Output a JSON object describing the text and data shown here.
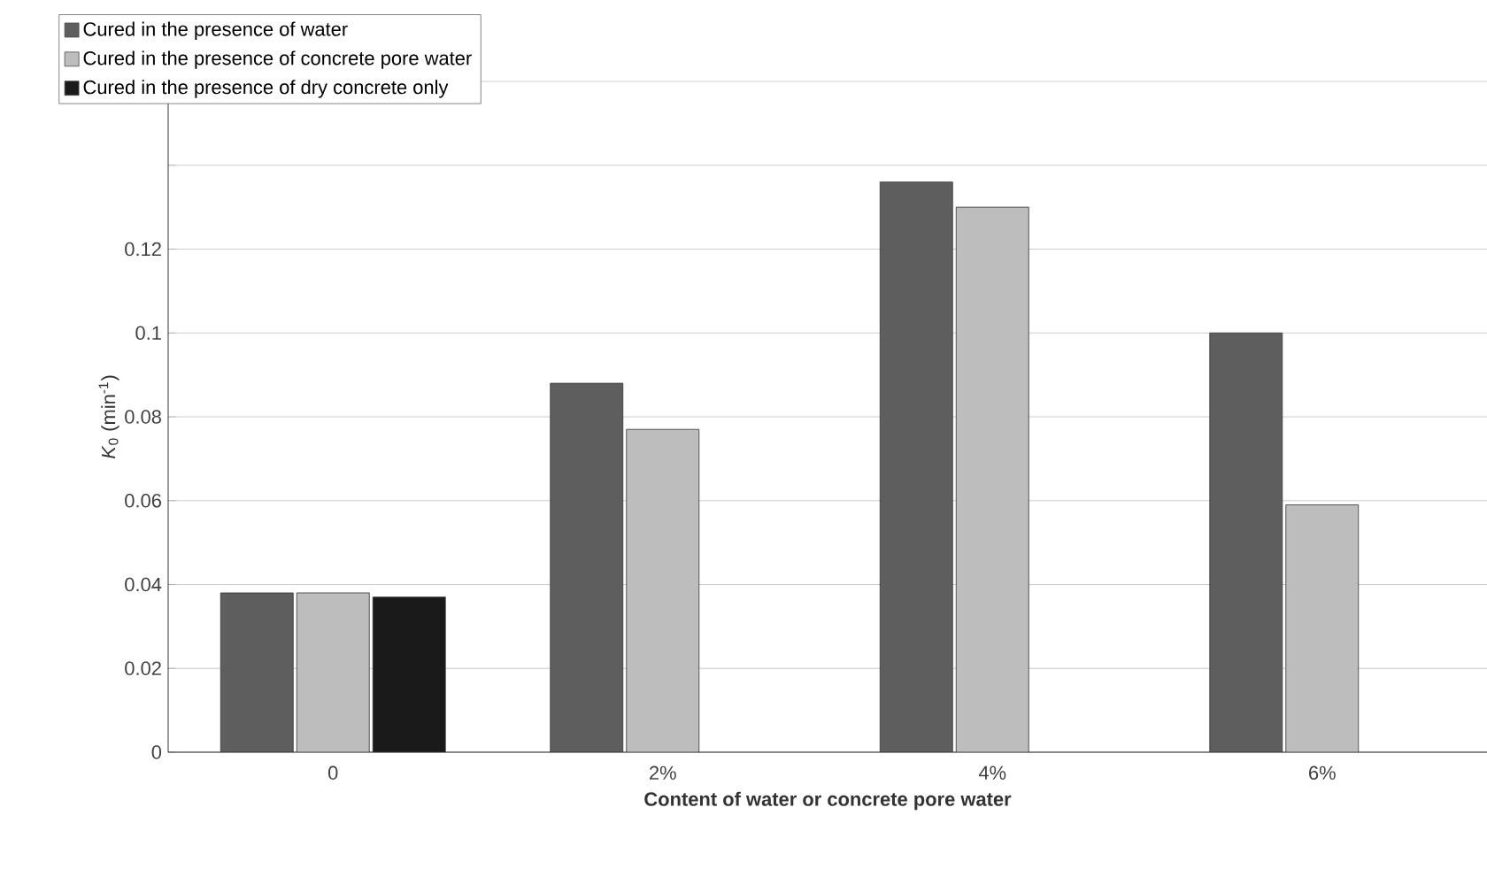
{
  "chart_data": {
    "type": "bar",
    "xlabel": "Content of water or concrete pore water",
    "ylabel": "*K*$_{0}$ (min$^{-1}$)",
    "categories": [
      "0",
      "2%",
      "4%",
      "6%"
    ],
    "series": [
      {
        "name": "Cured in the presence of water",
        "color": "#5e5e5e",
        "values": [
          0.038,
          0.088,
          0.136,
          0.1
        ]
      },
      {
        "name": "Cured in the presence of concrete pore  water",
        "color": "#bdbdbd",
        "values": [
          0.038,
          0.077,
          0.13,
          0.059
        ]
      },
      {
        "name": "Cured in the presence of dry concrete only",
        "color": "#1a1a1a",
        "values": [
          0.037,
          null,
          null,
          null
        ]
      }
    ],
    "ylim": [
      0,
      0.16
    ],
    "yticks": [
      0,
      0.02,
      0.04,
      0.06,
      0.08,
      0.1,
      0.12,
      {
        "value": 0.14,
        "label": null
      },
      {
        "value": 0.16,
        "label": null
      }
    ],
    "grid": "y",
    "legend": "top left"
  }
}
